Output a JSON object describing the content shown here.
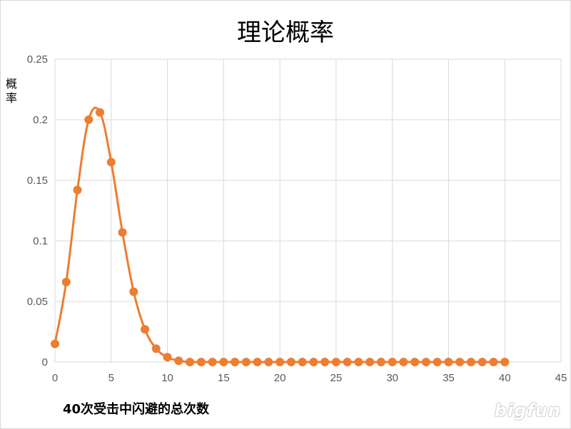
{
  "chart_data": {
    "type": "line",
    "title": "理论概率",
    "xlabel": "40次受击中闪避的总次数",
    "ylabel": "概率",
    "xlim": [
      0,
      45
    ],
    "ylim": [
      0,
      0.25
    ],
    "x_ticks": [
      "0",
      "5",
      "10",
      "15",
      "20",
      "25",
      "30",
      "35",
      "40",
      "45"
    ],
    "y_ticks": [
      "0",
      "0.05",
      "0.1",
      "0.15",
      "0.2",
      "0.25"
    ],
    "grid": true,
    "line_color": "#ED7D31",
    "series": [
      {
        "x": [
          0,
          1,
          2,
          3,
          4,
          5,
          6,
          7,
          8,
          9,
          10,
          11,
          12,
          13,
          14,
          15,
          16,
          17,
          18,
          19,
          20,
          21,
          22,
          23,
          24,
          25,
          26,
          27,
          28,
          29,
          30,
          31,
          32,
          33,
          34,
          35,
          36,
          37,
          38,
          39,
          40
        ],
        "values": [
          0.015,
          0.066,
          0.142,
          0.2,
          0.206,
          0.165,
          0.107,
          0.058,
          0.027,
          0.011,
          0.004,
          0.001,
          0,
          0,
          0,
          0,
          0,
          0,
          0,
          0,
          0,
          0,
          0,
          0,
          0,
          0,
          0,
          0,
          0,
          0,
          0,
          0,
          0,
          0,
          0,
          0,
          0,
          0,
          0,
          0,
          0
        ]
      }
    ]
  },
  "watermark": "bigfun"
}
